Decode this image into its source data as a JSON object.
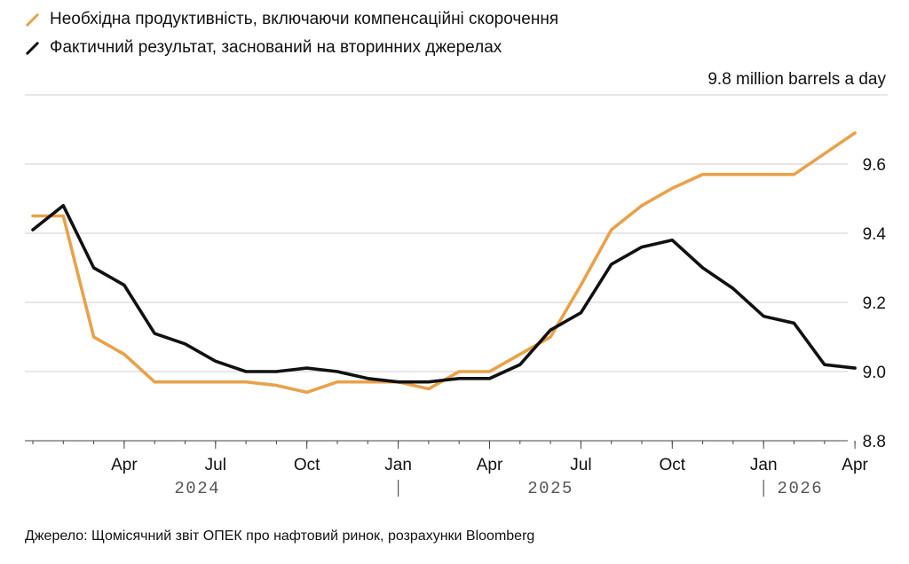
{
  "chart_data": {
    "type": "line",
    "unit_label": "9.8 million barrels a day",
    "ylim": [
      8.8,
      9.8
    ],
    "y_ticks": [
      8.8,
      9.0,
      9.2,
      9.4,
      9.6
    ],
    "x_ticks": [
      {
        "month": 4,
        "label": "Apr"
      },
      {
        "month": 7,
        "label": "Jul"
      },
      {
        "month": 10,
        "label": "Oct"
      },
      {
        "month": 13,
        "label": "Jan"
      },
      {
        "month": 16,
        "label": "Apr"
      },
      {
        "month": 19,
        "label": "Jul"
      },
      {
        "month": 22,
        "label": "Oct"
      },
      {
        "month": 25,
        "label": "Jan"
      },
      {
        "month": 28,
        "label": "Apr"
      }
    ],
    "years": [
      {
        "label": "2024",
        "center_month": 6.4
      },
      {
        "label": "2025",
        "center_month": 18.0
      },
      {
        "label": "2026",
        "center_month": 26.2
      }
    ],
    "year_separators": [
      13,
      25
    ],
    "series": [
      {
        "name": "Необхідна продуктивність, включаючи компенсаційні скорочення",
        "color": "#E8A24B",
        "x": [
          1,
          2,
          3,
          4,
          5,
          6,
          7,
          8,
          9,
          10,
          11,
          12,
          13,
          14,
          15,
          16,
          17,
          18,
          19,
          20,
          21,
          22,
          23,
          24,
          25,
          26,
          27,
          28
        ],
        "values": [
          9.45,
          9.45,
          9.1,
          9.05,
          8.97,
          8.97,
          8.97,
          8.97,
          8.96,
          8.94,
          8.97,
          8.97,
          8.97,
          8.95,
          9.0,
          9.0,
          9.05,
          9.1,
          9.25,
          9.41,
          9.48,
          9.53,
          9.57,
          9.57,
          9.57,
          9.57,
          9.63,
          9.69
        ]
      },
      {
        "name": "Фактичний результат, заснований на вторинних джерелах",
        "color": "#111111",
        "x": [
          1,
          2,
          3,
          4,
          5,
          6,
          7,
          8,
          9,
          10,
          11,
          12,
          13,
          14,
          15,
          16,
          17,
          18,
          19,
          20,
          21,
          22,
          23,
          24,
          25,
          26,
          27,
          28
        ],
        "values": [
          9.41,
          9.48,
          9.3,
          9.25,
          9.11,
          9.08,
          9.03,
          9.0,
          9.0,
          9.01,
          9.0,
          8.98,
          8.97,
          8.97,
          8.98,
          8.98,
          9.02,
          9.12,
          9.17,
          9.31,
          9.36,
          9.38,
          9.3,
          9.24,
          9.16,
          9.14,
          9.02,
          9.01
        ]
      }
    ]
  },
  "source": "Джерело: Щомісячний звіт ОПЕК про нафтовий ринок, розрахунки Bloomberg"
}
